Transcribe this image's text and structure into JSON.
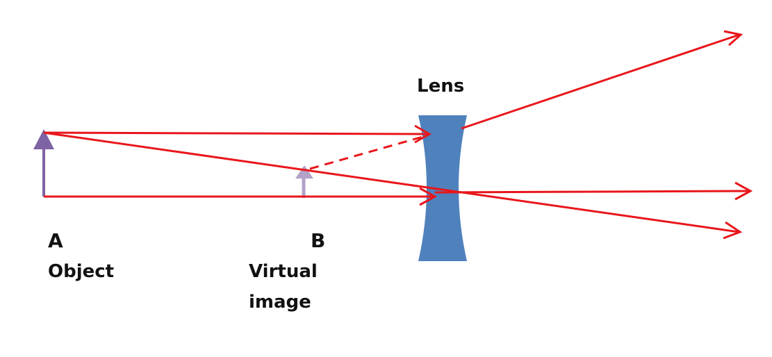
{
  "labels": {
    "lens": "Lens",
    "point_a": "A",
    "object": "Object",
    "point_b": "B",
    "virtual": "Virtual",
    "image": "image"
  },
  "colors": {
    "ray": "#e8161b",
    "lens": "#4f81bd",
    "object_arrow": "#7e63a3",
    "image_arrow": "#b3a2c7",
    "text": "#111111"
  }
}
